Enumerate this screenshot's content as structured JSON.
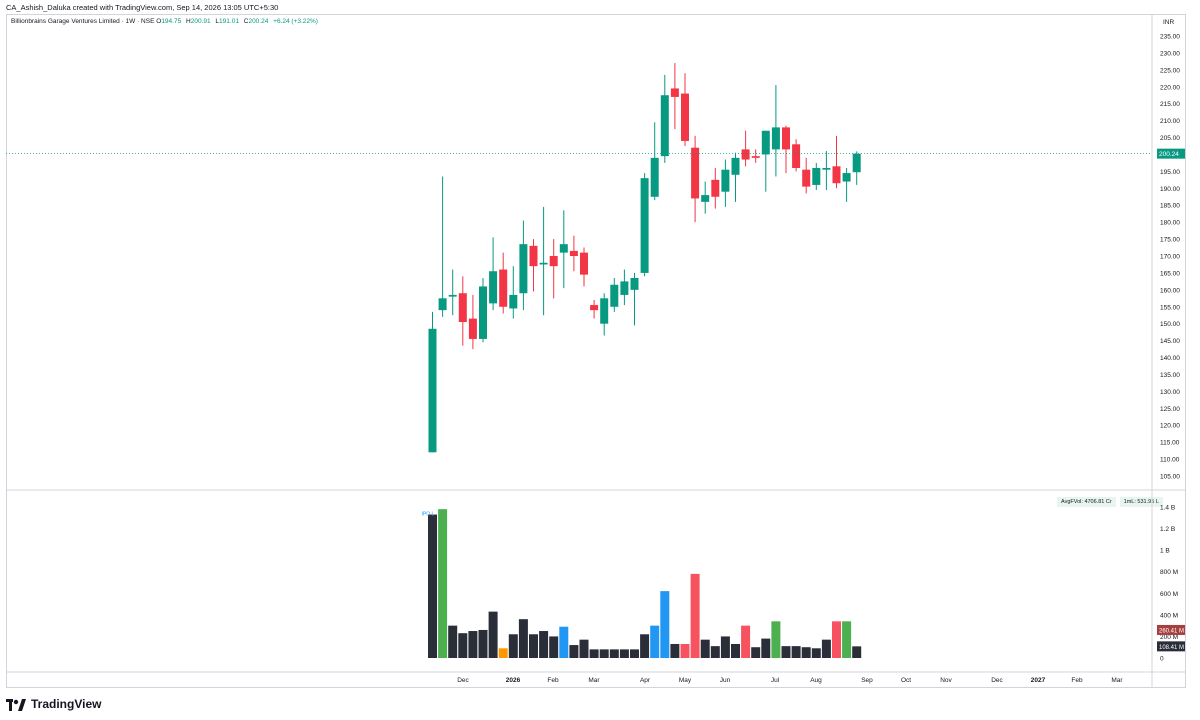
{
  "header": {
    "credit": "CA_Ashish_Daluka created with TradingView.com, Sep 14, 2026 13:05 UTC+5:30"
  },
  "legend": {
    "symbol": "Billionbrains Garage Ventures Limited · 1W · NSE",
    "o_label": "O",
    "o_value": "194.75",
    "h_label": "H",
    "h_value": "200.91",
    "l_label": "L",
    "l_value": "191.01",
    "c_label": "C",
    "c_value": "200.24",
    "change": "+6.24 (+3.22%)"
  },
  "currency": "INR",
  "last_price_label": "200.24",
  "volume_stats": {
    "avg_vol": "AvgFVol: 4706.81 Cr",
    "one_ml": "1mL: 531.95 L"
  },
  "volume_markers": {
    "ipo_label": "IPO L",
    "vol_badge_1": "260.41 M",
    "vol_badge_2": "108.41 M"
  },
  "footer": {
    "brand": "TradingView"
  },
  "colors": {
    "up": "#089981",
    "down": "#f23645",
    "vol_dark": "#2a2e39",
    "vol_green": "#4caf50",
    "vol_red": "#f7525f",
    "vol_blue": "#2196f3",
    "vol_orange": "#ff9800"
  },
  "chart_data": {
    "type": "candlestick",
    "price_axis": {
      "ticks": [
        "235.00",
        "230.00",
        "225.00",
        "220.00",
        "215.00",
        "210.00",
        "205.00",
        "200.00",
        "195.00",
        "190.00",
        "185.00",
        "180.00",
        "175.00",
        "170.00",
        "165.00",
        "160.00",
        "155.00",
        "150.00",
        "145.00",
        "140.00",
        "135.00",
        "130.00",
        "125.00",
        "120.00",
        "115.00",
        "110.00",
        "105.00"
      ],
      "range": [
        103,
        236
      ]
    },
    "volume_axis": {
      "ticks": [
        "1.4 B",
        "1.2 B",
        "1 B",
        "800 M",
        "600 M",
        "400 M",
        "200 M",
        "0"
      ],
      "range": [
        0,
        1.4
      ]
    },
    "time_axis": [
      "Dec",
      "2026",
      "Feb",
      "Mar",
      "Apr",
      "May",
      "Jun",
      "Jul",
      "Aug",
      "Sep",
      "Oct",
      "Nov",
      "Dec",
      "2027",
      "Feb",
      "Mar"
    ],
    "candles": [
      {
        "o": 112.0,
        "h": 153.5,
        "l": 112.0,
        "c": 148.5,
        "v": 1.33,
        "vc": "dark"
      },
      {
        "o": 154.0,
        "h": 193.5,
        "l": 152.0,
        "c": 157.5,
        "v": 1.38,
        "vc": "green"
      },
      {
        "o": 158.0,
        "h": 166.0,
        "l": 152.5,
        "c": 158.5,
        "v": 0.3,
        "vc": "dark"
      },
      {
        "o": 159.0,
        "h": 164.0,
        "l": 143.5,
        "c": 150.5,
        "v": 0.23,
        "vc": "dark"
      },
      {
        "o": 151.5,
        "h": 158.5,
        "l": 142.5,
        "c": 145.5,
        "v": 0.25,
        "vc": "dark"
      },
      {
        "o": 145.5,
        "h": 163.5,
        "l": 144.5,
        "c": 161.0,
        "v": 0.26,
        "vc": "dark"
      },
      {
        "o": 156.0,
        "h": 175.5,
        "l": 154.0,
        "c": 165.5,
        "v": 0.43,
        "vc": "dark"
      },
      {
        "o": 166.0,
        "h": 171.0,
        "l": 153.0,
        "c": 155.0,
        "v": 0.09,
        "vc": "orange"
      },
      {
        "o": 154.5,
        "h": 167.0,
        "l": 151.5,
        "c": 158.5,
        "v": 0.22,
        "vc": "dark"
      },
      {
        "o": 159.0,
        "h": 180.5,
        "l": 154.0,
        "c": 173.5,
        "v": 0.36,
        "vc": "dark"
      },
      {
        "o": 173.0,
        "h": 175.0,
        "l": 159.5,
        "c": 167.0,
        "v": 0.22,
        "vc": "dark"
      },
      {
        "o": 167.5,
        "h": 184.5,
        "l": 152.5,
        "c": 168.0,
        "v": 0.25,
        "vc": "dark"
      },
      {
        "o": 170.0,
        "h": 175.0,
        "l": 157.5,
        "c": 167.0,
        "v": 0.2,
        "vc": "dark"
      },
      {
        "o": 171.0,
        "h": 183.5,
        "l": 160.5,
        "c": 173.5,
        "v": 0.29,
        "vc": "blue"
      },
      {
        "o": 171.5,
        "h": 176.0,
        "l": 165.5,
        "c": 170.0,
        "v": 0.12,
        "vc": "dark"
      },
      {
        "o": 171.0,
        "h": 172.5,
        "l": 161.0,
        "c": 164.5,
        "v": 0.17,
        "vc": "dark"
      },
      {
        "o": 155.5,
        "h": 157.0,
        "l": 151.5,
        "c": 154.0,
        "v": 0.08,
        "vc": "dark"
      },
      {
        "o": 150.0,
        "h": 159.0,
        "l": 146.5,
        "c": 157.5,
        "v": 0.08,
        "vc": "dark"
      },
      {
        "o": 155.0,
        "h": 163.5,
        "l": 153.5,
        "c": 161.5,
        "v": 0.08,
        "vc": "dark"
      },
      {
        "o": 158.5,
        "h": 166.0,
        "l": 155.5,
        "c": 162.5,
        "v": 0.08,
        "vc": "dark"
      },
      {
        "o": 160.0,
        "h": 165.0,
        "l": 149.5,
        "c": 163.5,
        "v": 0.08,
        "vc": "dark"
      },
      {
        "o": 165.0,
        "h": 194.5,
        "l": 164.0,
        "c": 193.0,
        "v": 0.22,
        "vc": "dark"
      },
      {
        "o": 187.5,
        "h": 209.5,
        "l": 186.5,
        "c": 199.0,
        "v": 0.3,
        "vc": "blue"
      },
      {
        "o": 199.5,
        "h": 223.5,
        "l": 197.5,
        "c": 217.5,
        "v": 0.62,
        "vc": "blue"
      },
      {
        "o": 219.5,
        "h": 227.0,
        "l": 207.5,
        "c": 217.0,
        "v": 0.13,
        "vc": "dark"
      },
      {
        "o": 218.0,
        "h": 224.0,
        "l": 202.5,
        "c": 204.0,
        "v": 0.13,
        "vc": "red"
      },
      {
        "o": 202.0,
        "h": 205.5,
        "l": 180.0,
        "c": 187.0,
        "v": 0.78,
        "vc": "red"
      },
      {
        "o": 186.0,
        "h": 192.0,
        "l": 182.5,
        "c": 188.0,
        "v": 0.17,
        "vc": "dark"
      },
      {
        "o": 192.5,
        "h": 196.0,
        "l": 184.0,
        "c": 187.5,
        "v": 0.11,
        "vc": "dark"
      },
      {
        "o": 189.0,
        "h": 198.5,
        "l": 184.5,
        "c": 195.5,
        "v": 0.2,
        "vc": "dark"
      },
      {
        "o": 194.0,
        "h": 200.5,
        "l": 186.0,
        "c": 199.0,
        "v": 0.13,
        "vc": "dark"
      },
      {
        "o": 201.5,
        "h": 207.0,
        "l": 196.5,
        "c": 198.5,
        "v": 0.3,
        "vc": "red"
      },
      {
        "o": 199.5,
        "h": 201.5,
        "l": 197.5,
        "c": 199.0,
        "v": 0.1,
        "vc": "dark"
      },
      {
        "o": 200.0,
        "h": 207.0,
        "l": 189.0,
        "c": 207.0,
        "v": 0.18,
        "vc": "dark"
      },
      {
        "o": 201.5,
        "h": 220.5,
        "l": 193.5,
        "c": 208.0,
        "v": 0.34,
        "vc": "green"
      },
      {
        "o": 208.0,
        "h": 208.5,
        "l": 194.5,
        "c": 201.5,
        "v": 0.11,
        "vc": "dark"
      },
      {
        "o": 203.0,
        "h": 204.5,
        "l": 195.0,
        "c": 196.0,
        "v": 0.11,
        "vc": "dark"
      },
      {
        "o": 195.5,
        "h": 199.0,
        "l": 188.5,
        "c": 190.5,
        "v": 0.1,
        "vc": "dark"
      },
      {
        "o": 191.0,
        "h": 197.5,
        "l": 189.5,
        "c": 196.0,
        "v": 0.09,
        "vc": "dark"
      },
      {
        "o": 195.5,
        "h": 201.0,
        "l": 189.5,
        "c": 196.0,
        "v": 0.17,
        "vc": "dark"
      },
      {
        "o": 196.5,
        "h": 205.5,
        "l": 190.0,
        "c": 191.5,
        "v": 0.34,
        "vc": "red"
      },
      {
        "o": 192.0,
        "h": 196.0,
        "l": 186.0,
        "c": 194.5,
        "v": 0.34,
        "vc": "green"
      },
      {
        "o": 194.75,
        "h": 200.91,
        "l": 191.01,
        "c": 200.24,
        "v": 0.108,
        "vc": "dark"
      }
    ]
  }
}
